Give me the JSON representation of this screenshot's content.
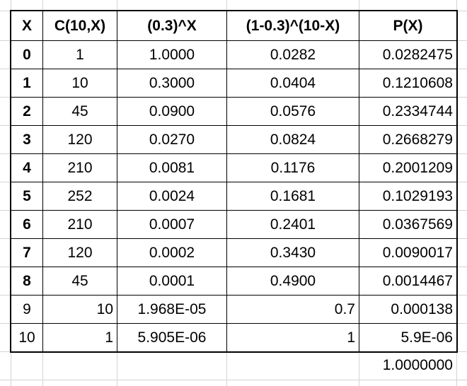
{
  "table": {
    "header": [
      "X",
      "C(10,X)",
      "(0.3)^X",
      "(1-0.3)^(10-X)",
      "P(X)"
    ],
    "rows": [
      [
        "0",
        "1",
        "1.0000",
        "0.0282",
        "0.0282475"
      ],
      [
        "1",
        "10",
        "0.3000",
        "0.0404",
        "0.1210608"
      ],
      [
        "2",
        "45",
        "0.0900",
        "0.0576",
        "0.2334744"
      ],
      [
        "3",
        "120",
        "0.0270",
        "0.0824",
        "0.2668279"
      ],
      [
        "4",
        "210",
        "0.0081",
        "0.1176",
        "0.2001209"
      ],
      [
        "5",
        "252",
        "0.0024",
        "0.1681",
        "0.1029193"
      ],
      [
        "6",
        "210",
        "0.0007",
        "0.2401",
        "0.0367569"
      ],
      [
        "7",
        "120",
        "0.0002",
        "0.3430",
        "0.0090017"
      ],
      [
        "8",
        "45",
        "0.0001",
        "0.4900",
        "0.0014467"
      ],
      [
        "9",
        "10",
        "1.968E-05",
        "0.7",
        "0.000138"
      ],
      [
        "10",
        "1",
        "5.905E-06",
        "1",
        "5.9E-06"
      ]
    ],
    "total": "1.0000000"
  }
}
